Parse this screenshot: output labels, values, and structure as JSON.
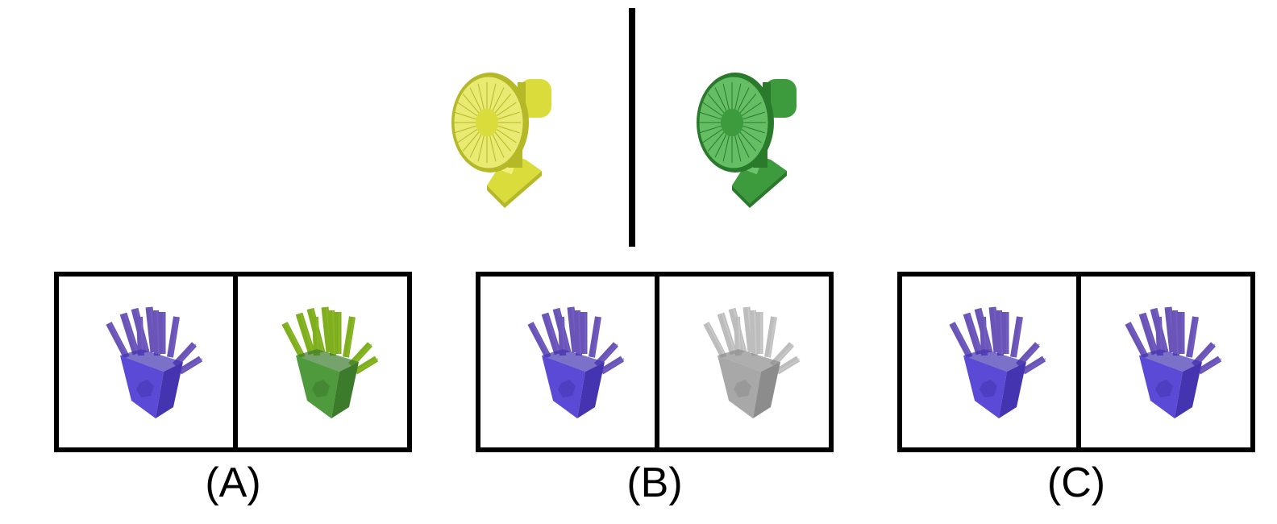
{
  "question": {
    "example_pair": {
      "left": {
        "object": "fan",
        "color_name": "yellow",
        "body": "#d9dc3a",
        "shade": "#b5b827",
        "light": "#eef07a"
      },
      "right": {
        "object": "fan",
        "color_name": "green",
        "body": "#3d9a3d",
        "shade": "#2a7a2c",
        "light": "#6cc46a"
      }
    }
  },
  "options": [
    {
      "label": "(A)",
      "left": {
        "object": "fries",
        "color_name": "purple",
        "body": "#5b4ad6",
        "shade": "#4434b0",
        "light": "#7a63c8",
        "stick": "#6a54b8"
      },
      "right": {
        "object": "fries",
        "color_name": "green",
        "body": "#4f9a3c",
        "shade": "#3c7a2c",
        "light": "#8fbf2a",
        "stick": "#7fae1e"
      }
    },
    {
      "label": "(B)",
      "left": {
        "object": "fries",
        "color_name": "purple",
        "body": "#5b4ad6",
        "shade": "#4434b0",
        "light": "#7a63c8",
        "stick": "#6a54b8"
      },
      "right": {
        "object": "fries",
        "color_name": "gray",
        "body": "#a8a8a8",
        "shade": "#8c8c8c",
        "light": "#d0d0d0",
        "stick": "#bdbdbd"
      }
    },
    {
      "label": "(C)",
      "left": {
        "object": "fries",
        "color_name": "purple",
        "body": "#5b4ad6",
        "shade": "#4434b0",
        "light": "#7a63c8",
        "stick": "#6a54b8"
      },
      "right": {
        "object": "fries",
        "color_name": "purple",
        "body": "#5b4ad6",
        "shade": "#4434b0",
        "light": "#7a63c8",
        "stick": "#6a54b8"
      }
    }
  ]
}
